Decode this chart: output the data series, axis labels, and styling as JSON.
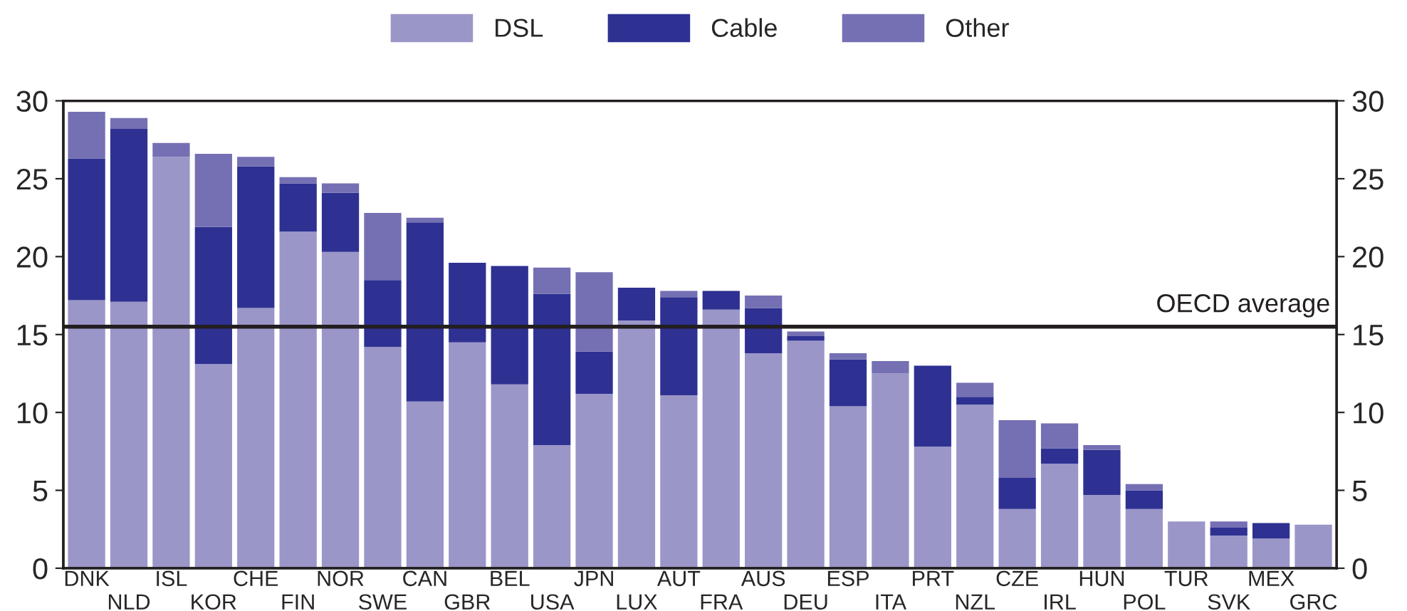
{
  "chart_data": {
    "type": "bar",
    "stacked": true,
    "categories": [
      "DNK",
      "NLD",
      "ISL",
      "KOR",
      "CHE",
      "FIN",
      "NOR",
      "SWE",
      "CAN",
      "GBR",
      "BEL",
      "USA",
      "JPN",
      "LUX",
      "AUT",
      "FRA",
      "AUS",
      "DEU",
      "ESP",
      "ITA",
      "PRT",
      "NZL",
      "CZE",
      "IRL",
      "HUN",
      "POL",
      "TUR",
      "SVK",
      "MEX",
      "GRC"
    ],
    "series": [
      {
        "name": "DSL",
        "color": "#9b96c8",
        "values": [
          17.2,
          17.1,
          26.4,
          13.1,
          16.7,
          21.6,
          20.3,
          14.2,
          10.7,
          14.5,
          11.8,
          7.9,
          11.2,
          15.9,
          11.1,
          16.6,
          13.8,
          14.6,
          10.4,
          12.5,
          7.8,
          10.5,
          3.8,
          6.7,
          4.7,
          3.8,
          3.0,
          2.1,
          1.9,
          2.8
        ]
      },
      {
        "name": "Cable",
        "color": "#2e3192",
        "values": [
          9.1,
          11.1,
          0,
          8.8,
          9.1,
          3.1,
          3.8,
          4.3,
          11.5,
          5.1,
          7.6,
          9.7,
          2.7,
          2.1,
          6.3,
          1.2,
          2.9,
          0.3,
          3.0,
          0,
          5.2,
          0.5,
          2.0,
          1.0,
          2.9,
          1.2,
          0,
          0.5,
          1.0,
          0
        ]
      },
      {
        "name": "Other",
        "color": "#7570b3",
        "values": [
          3.0,
          0.7,
          0.9,
          4.7,
          0.6,
          0.4,
          0.6,
          4.3,
          0.3,
          0,
          0,
          1.7,
          5.1,
          0,
          0.4,
          0,
          0.8,
          0.3,
          0.4,
          0.8,
          0,
          0.9,
          3.7,
          1.6,
          0.3,
          0.4,
          0,
          0.4,
          0,
          0
        ]
      }
    ],
    "ylim": [
      0,
      30
    ],
    "yticks": [
      0,
      5,
      10,
      15,
      20,
      25,
      30
    ],
    "y2lim": [
      0,
      30
    ],
    "y2ticks": [
      0,
      5,
      10,
      15,
      20,
      25,
      30
    ],
    "ref_lines": [
      {
        "axis": "y",
        "value": 15.5,
        "label": "OECD average",
        "color": "#231f20"
      }
    ],
    "legend": "top",
    "grid": false
  }
}
